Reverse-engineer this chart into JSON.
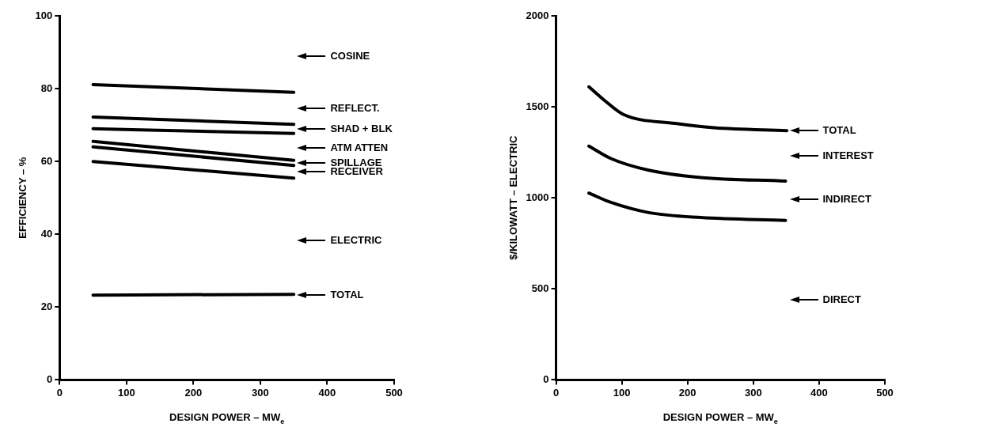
{
  "chart_data": [
    {
      "type": "line",
      "xlabel": "DESIGN POWER – MW$_{e}$",
      "ylabel": "EFFICIENCY – %",
      "xlim": [
        0,
        500
      ],
      "xticks": [
        0,
        100,
        200,
        300,
        400,
        500
      ],
      "ylim": [
        0,
        100
      ],
      "yticks": [
        0,
        20,
        40,
        60,
        80,
        100
      ],
      "grid": false,
      "legend": false,
      "marker": "none",
      "line_style": "solid",
      "series": [
        {
          "color": "#000000",
          "x": [
            50,
            350
          ],
          "values": [
            81.1,
            79
          ]
        },
        {
          "color": "#000000",
          "x": [
            50,
            350
          ],
          "values": [
            72.2,
            70.2
          ]
        },
        {
          "color": "#000000",
          "x": [
            50,
            350
          ],
          "values": [
            69,
            67.7
          ]
        },
        {
          "color": "#000000",
          "x": [
            50,
            350
          ],
          "values": [
            65.5,
            60.3
          ]
        },
        {
          "color": "#000000",
          "x": [
            50,
            350
          ],
          "values": [
            64,
            58.9
          ]
        },
        {
          "color": "#000000",
          "x": [
            50,
            350
          ],
          "values": [
            60,
            55.4
          ]
        },
        {
          "color": "#000000",
          "x": [
            50,
            350
          ],
          "values": [
            23.3,
            23.5
          ]
        }
      ],
      "annotations": [
        "COSINE",
        "REFLECT.",
        "SHAD + BLK",
        "ATM ATTEN",
        "SPILLAGE",
        "RECEIVER",
        "ELECTRIC",
        "TOTAL"
      ]
    },
    {
      "type": "line",
      "xlabel": "DESIGN POWER – MW$_{e}$",
      "ylabel": "$/KILOWATT – ELECTRIC",
      "xlim": [
        0,
        500
      ],
      "xticks": [
        0,
        100,
        200,
        300,
        400,
        500
      ],
      "ylim": [
        0,
        2000
      ],
      "yticks": [
        0,
        500,
        1000,
        1500,
        2000
      ],
      "grid": false,
      "legend": false,
      "marker": "none",
      "line_style": "solid",
      "series": [
        {
          "color": "#000000",
          "x": [
            50,
            75.5,
            102.5,
            181,
            240,
            351
          ],
          "values": [
            1610,
            1530,
            1458,
            1409,
            1385,
            1369
          ]
        },
        {
          "color": "#000000",
          "x": [
            50,
            83.5,
            141,
            220,
            349
          ],
          "values": [
            1284,
            1216,
            1152,
            1112,
            1092
          ]
        },
        {
          "color": "#000000",
          "x": [
            50,
            83.5,
            141,
            220,
            349
          ],
          "values": [
            1026,
            975,
            919,
            892,
            876
          ]
        }
      ],
      "annotations": [
        "TOTAL",
        "INTEREST",
        "INDIRECT",
        "DIRECT"
      ]
    }
  ]
}
